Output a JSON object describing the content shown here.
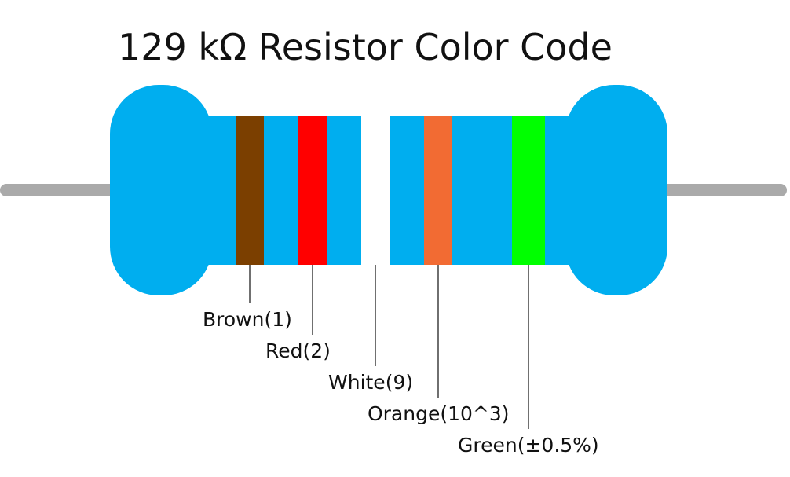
{
  "title": "129 kΩ Resistor Color Code",
  "colors": {
    "body": "#00AEEF",
    "lead": "#AAAAAA",
    "leader_line": "#222222",
    "text": "#111111"
  },
  "bands": [
    {
      "name": "band-brown",
      "color_name": "Brown",
      "hex": "#7B3F00",
      "label": "Brown(1)"
    },
    {
      "name": "band-red",
      "color_name": "Red",
      "hex": "#FF0000",
      "label": "Red(2)"
    },
    {
      "name": "band-white",
      "color_name": "White",
      "hex": "#FFFFFF",
      "label": "White(9)"
    },
    {
      "name": "band-orange",
      "color_name": "Orange",
      "hex": "#F26B33",
      "label": "Orange(10^3)"
    },
    {
      "name": "band-green",
      "color_name": "Green",
      "hex": "#00FF00",
      "label": "Green(±0.5%)"
    }
  ]
}
